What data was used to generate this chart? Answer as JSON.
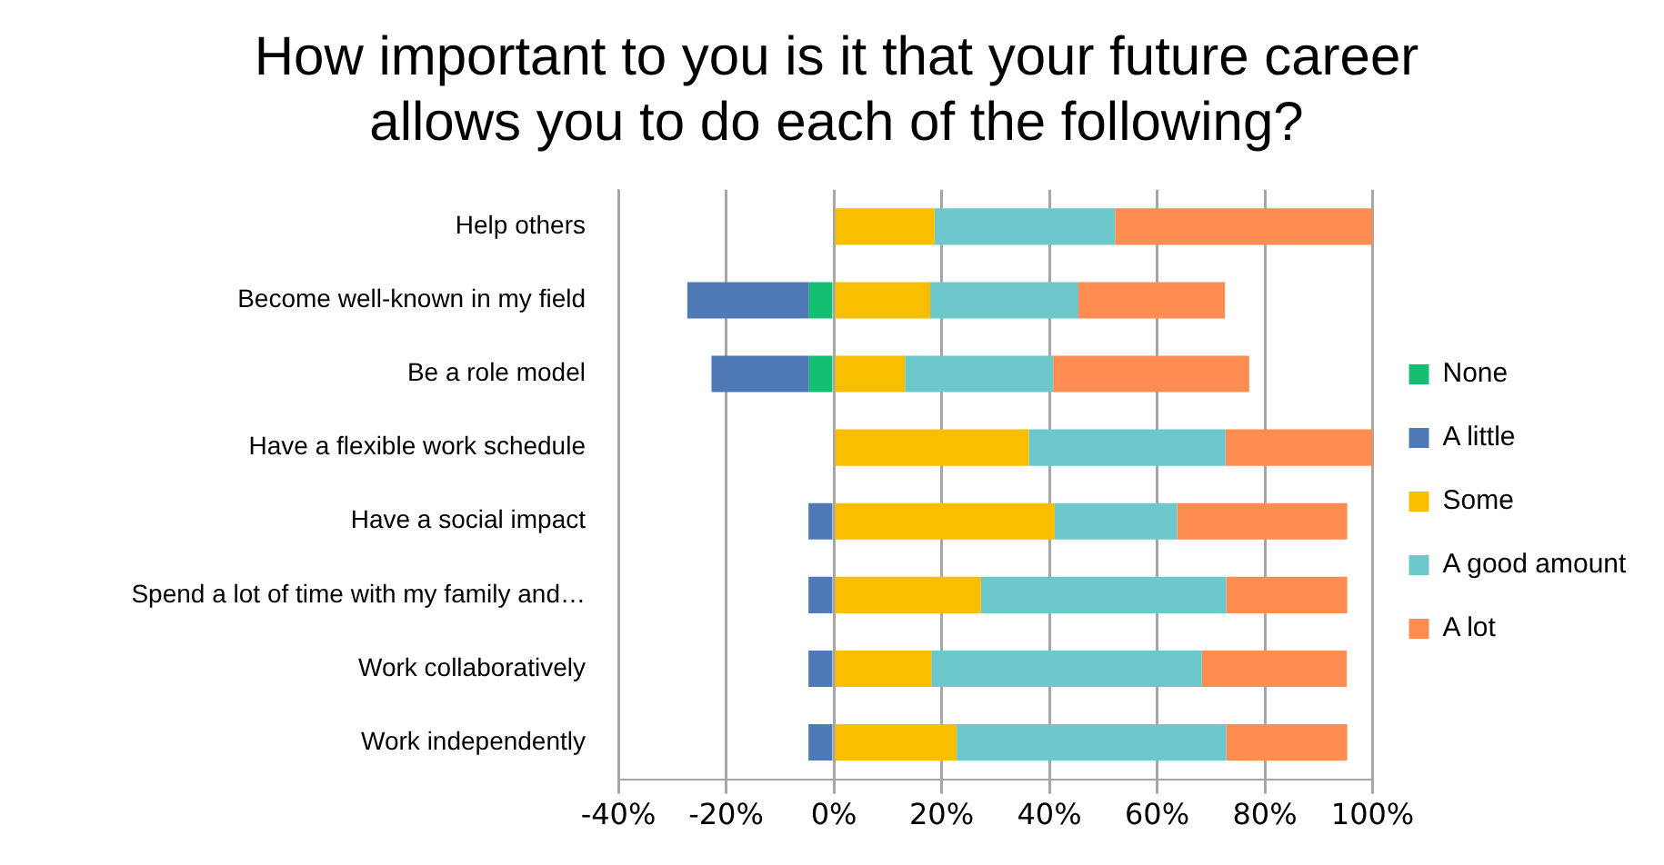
{
  "chart_data": {
    "type": "bar",
    "orientation": "horizontal",
    "stacked": true,
    "title": "How important to you is it that your future career allows you to do each of the following?",
    "categories": [
      "Help others",
      "Become well-known in my field",
      "Be a role model",
      "Have a flexible work schedule",
      "Have a social impact",
      "Spend a lot of time with my family and…",
      "Work collaboratively",
      "Work independently"
    ],
    "series": [
      {
        "name": "None",
        "color": "#14bf72",
        "values": [
          null,
          -4.6,
          -4.6,
          null,
          null,
          null,
          null,
          null
        ]
      },
      {
        "name": "A little",
        "color": "#4f7ab5",
        "values": [
          null,
          -22.6,
          -18.1,
          null,
          -4.7,
          -4.7,
          -4.7,
          -4.7
        ]
      },
      {
        "name": "Some",
        "color": "#f9be00",
        "values": [
          18.7,
          17.9,
          13.2,
          36.2,
          41,
          27.3,
          18.1,
          22.8
        ]
      },
      {
        "name": "A good amount",
        "color": "#6dc8cb",
        "values": [
          33.5,
          27.5,
          27.5,
          36.5,
          22.7,
          45.5,
          50.2,
          50
        ]
      },
      {
        "name": "A lot",
        "color": "#ff8c50",
        "values": [
          47.8,
          27.2,
          36.4,
          27.3,
          31.6,
          22.5,
          26.9,
          22.5
        ]
      }
    ],
    "xlim": [
      -40,
      100
    ],
    "xticks": [
      {
        "value": -40,
        "label": "-40%"
      },
      {
        "value": -20,
        "label": "-20%"
      },
      {
        "value": 0,
        "label": "0%"
      },
      {
        "value": 20,
        "label": "20%"
      },
      {
        "value": 40,
        "label": "40%"
      },
      {
        "value": 60,
        "label": "60%"
      },
      {
        "value": 80,
        "label": "80%"
      },
      {
        "value": 100,
        "label": "100%"
      }
    ],
    "grid": "x",
    "legend": "right"
  }
}
